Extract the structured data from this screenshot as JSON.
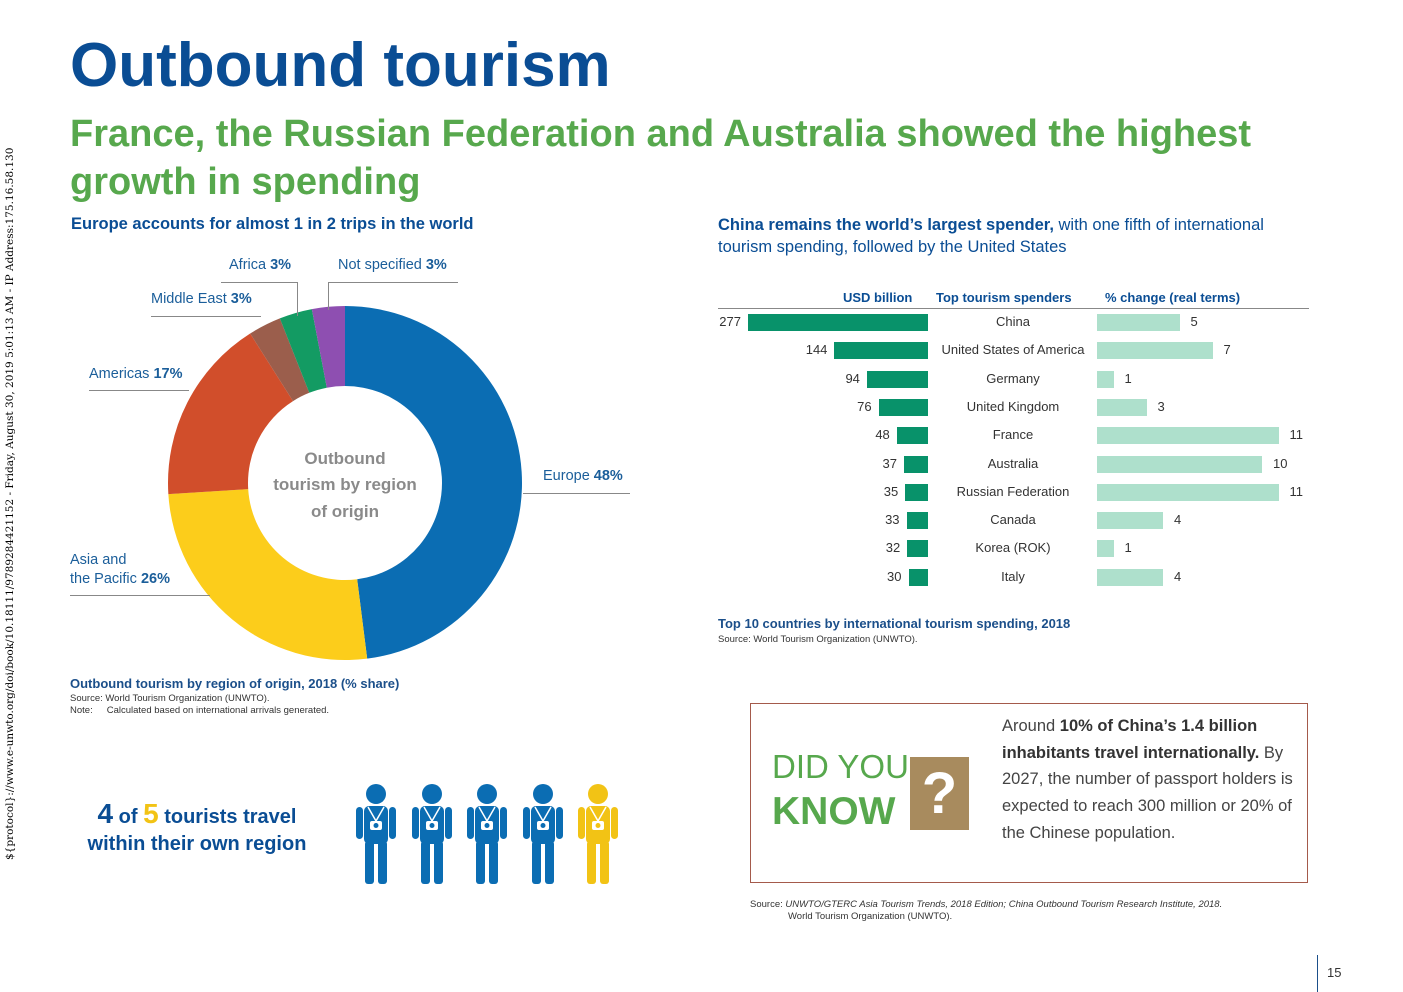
{
  "watermark": "${protocol}://www.e-unwto.org/doi/book/10.18111/9789284421152 - Friday, August 30, 2019 5:01:13 AM - IP Address:175.16.58.130",
  "title": "Outbound tourism",
  "subtitle": "France, the Russian Federation and Australia showed the highest growth in spending",
  "donut": {
    "heading": "Europe accounts for almost 1 in 2 trips in the world",
    "center_label": [
      "Outbound",
      "tourism by region",
      "of origin"
    ],
    "caption": "Outbound tourism by region of origin, 2018 (% share)",
    "source": "Source: World Tourism Organization (UNWTO).",
    "note_label": "Note:",
    "note": "Calculated based on international arrivals generated.",
    "labels": {
      "africa_name": "Africa",
      "africa_val": "3%",
      "notspec_name": "Not specified",
      "notspec_val": "3%",
      "middleeast_name": "Middle East",
      "middleeast_val": "3%",
      "americas_name": "Americas",
      "americas_val": "17%",
      "europe_name": "Europe",
      "europe_val": "48%",
      "asia_name_1": "Asia and",
      "asia_name_2": "the Pacific",
      "asia_val": "26%"
    }
  },
  "chart_data": [
    {
      "type": "pie",
      "title": "Outbound tourism by region of origin, 2018 (% share)",
      "categories": [
        "Europe",
        "Asia and the Pacific",
        "Americas",
        "Middle East",
        "Africa",
        "Not specified"
      ],
      "values": [
        48,
        26,
        17,
        3,
        3,
        3
      ],
      "colors": [
        "#0b6db3",
        "#fccd1b",
        "#d14e2b",
        "#9b5e4c",
        "#139b63",
        "#8e4fb1"
      ]
    },
    {
      "type": "bar",
      "title": "Top 10 countries by international tourism spending, 2018",
      "categories": [
        "China",
        "United States of America",
        "Germany",
        "United Kingdom",
        "France",
        "Australia",
        "Russian Federation",
        "Canada",
        "Korea (ROK)",
        "Italy"
      ],
      "series": [
        {
          "name": "USD billion",
          "values": [
            277,
            144,
            94,
            76,
            48,
            37,
            35,
            33,
            32,
            30
          ],
          "color": "#08926a"
        },
        {
          "name": "% change (real terms)",
          "values": [
            5,
            7,
            1,
            3,
            11,
            10,
            11,
            4,
            1,
            4
          ],
          "color": "#aee0cc"
        }
      ]
    }
  ],
  "spenders": {
    "heading_bold": "China remains the world’s largest spender,",
    "heading_rest": " with one fifth of international tourism spending, followed by the United States",
    "col_usd": "USD billion",
    "col_country": "Top tourism spenders",
    "col_change": "% change (real terms)",
    "caption": "Top 10 countries by international tourism spending, 2018",
    "source": "Source: World Tourism Organization (UNWTO)."
  },
  "tourists": {
    "num1": "4",
    "of": " of ",
    "num2": "5",
    "rest": " tourists travel",
    "line2": "within their own region",
    "colors": [
      "#0b6db3",
      "#0b6db3",
      "#0b6db3",
      "#0b6db3",
      "#f2c315"
    ]
  },
  "did_you_know": {
    "did": "DID YOU",
    "know": "KNOW",
    "question": "?",
    "t1": "Around ",
    "t2": "10% of China’s 1.4 billion inhabitants travel internationally.",
    "t3": " By 2027, the number of passport holders is expected to reach 300 million or 20% of the Chinese population.",
    "source_1": "Source: ",
    "source_2": "UNWTO/GTERC Asia Tourism Trends, 2018 Edition; China Outbound Tourism Research Institute, 2018.",
    "source_3": "World Tourism Organization (UNWTO)."
  },
  "page_number": "15"
}
